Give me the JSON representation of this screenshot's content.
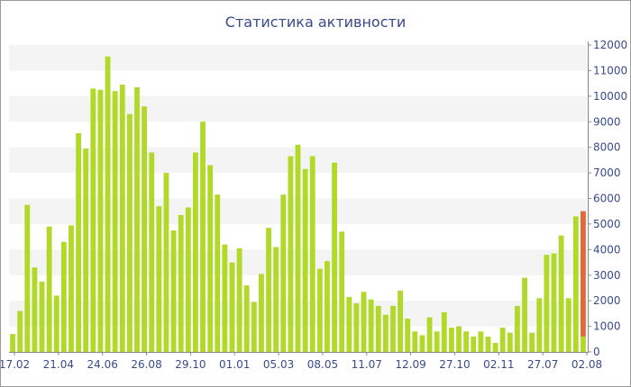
{
  "chart_data": {
    "type": "bar",
    "title": "Статистика активности",
    "xlabel": "",
    "ylabel": "",
    "ylim": [
      0,
      12000
    ],
    "yticks": [
      0,
      1000,
      2000,
      3000,
      4000,
      5000,
      6000,
      7000,
      8000,
      9000,
      10000,
      11000,
      12000
    ],
    "grid": "horizontal alternating bands",
    "legend": "none",
    "x_tick_labels": [
      "17.02",
      "21.04",
      "24.06",
      "26.08",
      "29.10",
      "01.01",
      "05.03",
      "08.05",
      "11.07",
      "12.09",
      "27.10",
      "02.11",
      "27.07",
      "02.08"
    ],
    "values": [
      700,
      1600,
      5750,
      3300,
      2750,
      4900,
      2200,
      4300,
      4950,
      8550,
      7950,
      10300,
      10250,
      11550,
      10200,
      10450,
      9300,
      10350,
      9600,
      7800,
      5700,
      7000,
      4750,
      5350,
      5650,
      7800,
      9000,
      7300,
      6150,
      4200,
      3500,
      4050,
      2600,
      1950,
      3050,
      4850,
      4100,
      6150,
      7650,
      8100,
      7150,
      7650,
      3250,
      3550,
      7400,
      4700,
      2150,
      1900,
      2350,
      2050,
      1800,
      1450,
      1800,
      2400,
      1300,
      800,
      650,
      1350,
      800,
      1550,
      950,
      1000,
      800,
      600,
      800,
      600,
      350,
      950,
      750,
      1800,
      2900,
      750,
      2100,
      3800,
      3850,
      4550,
      2100,
      5300
    ],
    "last_bar": {
      "low": 600,
      "high": 5500
    },
    "colors": {
      "bar": "#b2d92a",
      "last_bar": "#e06a3a",
      "band": "#f4f4f4",
      "axis": "#888888",
      "text": "#3b4a8a"
    }
  }
}
